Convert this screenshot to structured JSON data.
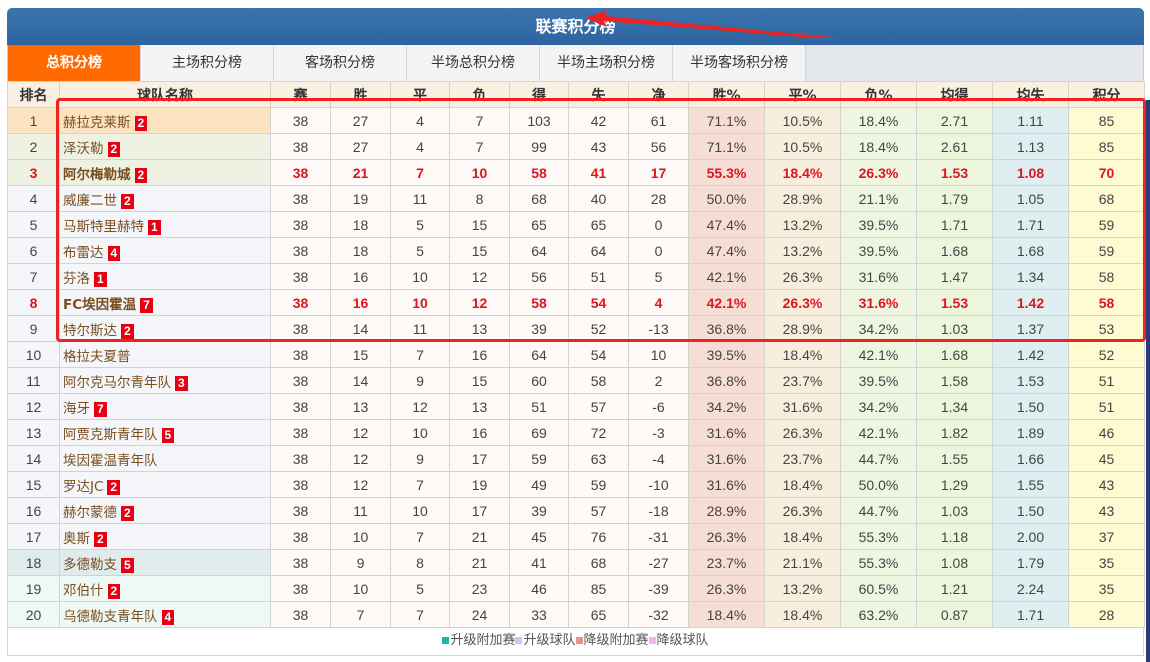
{
  "header": {
    "title": "联赛积分榜"
  },
  "tabs": [
    {
      "label": "总积分榜",
      "active": true
    },
    {
      "label": "主场积分榜",
      "active": false
    },
    {
      "label": "客场积分榜",
      "active": false
    },
    {
      "label": "半场总积分榜",
      "active": false
    },
    {
      "label": "半场主场积分榜",
      "active": false
    },
    {
      "label": "半场客场积分榜",
      "active": false
    }
  ],
  "columns": [
    "排名",
    "球队名称",
    "赛",
    "胜",
    "平",
    "负",
    "得",
    "失",
    "净",
    "胜%",
    "平%",
    "负%",
    "均得",
    "均失",
    "积分"
  ],
  "rows": [
    {
      "rank": "1",
      "team": "赫拉克莱斯",
      "badge": "2",
      "p": "38",
      "w": "27",
      "d": "4",
      "l": "7",
      "gf": "103",
      "ga": "42",
      "gd": "61",
      "wp": "71.1%",
      "dp": "10.5%",
      "lp": "18.4%",
      "avg_gf": "2.71",
      "avg_ga": "1.11",
      "pts": "85",
      "highlight": false
    },
    {
      "rank": "2",
      "team": "泽沃勒",
      "badge": "2",
      "p": "38",
      "w": "27",
      "d": "4",
      "l": "7",
      "gf": "99",
      "ga": "43",
      "gd": "56",
      "wp": "71.1%",
      "dp": "10.5%",
      "lp": "18.4%",
      "avg_gf": "2.61",
      "avg_ga": "1.13",
      "pts": "85",
      "highlight": false
    },
    {
      "rank": "3",
      "team": "阿尔梅勒城",
      "badge": "2",
      "p": "38",
      "w": "21",
      "d": "7",
      "l": "10",
      "gf": "58",
      "ga": "41",
      "gd": "17",
      "wp": "55.3%",
      "dp": "18.4%",
      "lp": "26.3%",
      "avg_gf": "1.53",
      "avg_ga": "1.08",
      "pts": "70",
      "highlight": true
    },
    {
      "rank": "4",
      "team": "威廉二世",
      "badge": "2",
      "p": "38",
      "w": "19",
      "d": "11",
      "l": "8",
      "gf": "68",
      "ga": "40",
      "gd": "28",
      "wp": "50.0%",
      "dp": "28.9%",
      "lp": "21.1%",
      "avg_gf": "1.79",
      "avg_ga": "1.05",
      "pts": "68",
      "highlight": false
    },
    {
      "rank": "5",
      "team": "马斯特里赫特",
      "badge": "1",
      "p": "38",
      "w": "18",
      "d": "5",
      "l": "15",
      "gf": "65",
      "ga": "65",
      "gd": "0",
      "wp": "47.4%",
      "dp": "13.2%",
      "lp": "39.5%",
      "avg_gf": "1.71",
      "avg_ga": "1.71",
      "pts": "59",
      "highlight": false
    },
    {
      "rank": "6",
      "team": "布雷达",
      "badge": "4",
      "p": "38",
      "w": "18",
      "d": "5",
      "l": "15",
      "gf": "64",
      "ga": "64",
      "gd": "0",
      "wp": "47.4%",
      "dp": "13.2%",
      "lp": "39.5%",
      "avg_gf": "1.68",
      "avg_ga": "1.68",
      "pts": "59",
      "highlight": false
    },
    {
      "rank": "7",
      "team": "芬洛",
      "badge": "1",
      "p": "38",
      "w": "16",
      "d": "10",
      "l": "12",
      "gf": "56",
      "ga": "51",
      "gd": "5",
      "wp": "42.1%",
      "dp": "26.3%",
      "lp": "31.6%",
      "avg_gf": "1.47",
      "avg_ga": "1.34",
      "pts": "58",
      "highlight": false
    },
    {
      "rank": "8",
      "team": "FC埃因霍温",
      "badge": "7",
      "p": "38",
      "w": "16",
      "d": "10",
      "l": "12",
      "gf": "58",
      "ga": "54",
      "gd": "4",
      "wp": "42.1%",
      "dp": "26.3%",
      "lp": "31.6%",
      "avg_gf": "1.53",
      "avg_ga": "1.42",
      "pts": "58",
      "highlight": true
    },
    {
      "rank": "9",
      "team": "特尔斯达",
      "badge": "2",
      "p": "38",
      "w": "14",
      "d": "11",
      "l": "13",
      "gf": "39",
      "ga": "52",
      "gd": "-13",
      "wp": "36.8%",
      "dp": "28.9%",
      "lp": "34.2%",
      "avg_gf": "1.03",
      "avg_ga": "1.37",
      "pts": "53",
      "highlight": false
    },
    {
      "rank": "10",
      "team": "格拉夫夏普",
      "badge": "",
      "p": "38",
      "w": "15",
      "d": "7",
      "l": "16",
      "gf": "64",
      "ga": "54",
      "gd": "10",
      "wp": "39.5%",
      "dp": "18.4%",
      "lp": "42.1%",
      "avg_gf": "1.68",
      "avg_ga": "1.42",
      "pts": "52",
      "highlight": false
    },
    {
      "rank": "11",
      "team": "阿尔克马尔青年队",
      "badge": "3",
      "p": "38",
      "w": "14",
      "d": "9",
      "l": "15",
      "gf": "60",
      "ga": "58",
      "gd": "2",
      "wp": "36.8%",
      "dp": "23.7%",
      "lp": "39.5%",
      "avg_gf": "1.58",
      "avg_ga": "1.53",
      "pts": "51",
      "highlight": false
    },
    {
      "rank": "12",
      "team": "海牙",
      "badge": "7",
      "p": "38",
      "w": "13",
      "d": "12",
      "l": "13",
      "gf": "51",
      "ga": "57",
      "gd": "-6",
      "wp": "34.2%",
      "dp": "31.6%",
      "lp": "34.2%",
      "avg_gf": "1.34",
      "avg_ga": "1.50",
      "pts": "51",
      "highlight": false
    },
    {
      "rank": "13",
      "team": "阿贾克斯青年队",
      "badge": "5",
      "p": "38",
      "w": "12",
      "d": "10",
      "l": "16",
      "gf": "69",
      "ga": "72",
      "gd": "-3",
      "wp": "31.6%",
      "dp": "26.3%",
      "lp": "42.1%",
      "avg_gf": "1.82",
      "avg_ga": "1.89",
      "pts": "46",
      "highlight": false
    },
    {
      "rank": "14",
      "team": "埃因霍温青年队",
      "badge": "",
      "p": "38",
      "w": "12",
      "d": "9",
      "l": "17",
      "gf": "59",
      "ga": "63",
      "gd": "-4",
      "wp": "31.6%",
      "dp": "23.7%",
      "lp": "44.7%",
      "avg_gf": "1.55",
      "avg_ga": "1.66",
      "pts": "45",
      "highlight": false
    },
    {
      "rank": "15",
      "team": "罗达JC",
      "badge": "2",
      "p": "38",
      "w": "12",
      "d": "7",
      "l": "19",
      "gf": "49",
      "ga": "59",
      "gd": "-10",
      "wp": "31.6%",
      "dp": "18.4%",
      "lp": "50.0%",
      "avg_gf": "1.29",
      "avg_ga": "1.55",
      "pts": "43",
      "highlight": false
    },
    {
      "rank": "16",
      "team": "赫尔蒙德",
      "badge": "2",
      "p": "38",
      "w": "11",
      "d": "10",
      "l": "17",
      "gf": "39",
      "ga": "57",
      "gd": "-18",
      "wp": "28.9%",
      "dp": "26.3%",
      "lp": "44.7%",
      "avg_gf": "1.03",
      "avg_ga": "1.50",
      "pts": "43",
      "highlight": false
    },
    {
      "rank": "17",
      "team": "奥斯",
      "badge": "2",
      "p": "38",
      "w": "10",
      "d": "7",
      "l": "21",
      "gf": "45",
      "ga": "76",
      "gd": "-31",
      "wp": "26.3%",
      "dp": "18.4%",
      "lp": "55.3%",
      "avg_gf": "1.18",
      "avg_ga": "2.00",
      "pts": "37",
      "highlight": false
    },
    {
      "rank": "18",
      "team": "多德勒支",
      "badge": "5",
      "p": "38",
      "w": "9",
      "d": "8",
      "l": "21",
      "gf": "41",
      "ga": "68",
      "gd": "-27",
      "wp": "23.7%",
      "dp": "21.1%",
      "lp": "55.3%",
      "avg_gf": "1.08",
      "avg_ga": "1.79",
      "pts": "35",
      "highlight": false
    },
    {
      "rank": "19",
      "team": "邓伯什",
      "badge": "2",
      "p": "38",
      "w": "10",
      "d": "5",
      "l": "23",
      "gf": "46",
      "ga": "85",
      "gd": "-39",
      "wp": "26.3%",
      "dp": "13.2%",
      "lp": "60.5%",
      "avg_gf": "1.21",
      "avg_ga": "2.24",
      "pts": "35",
      "highlight": false
    },
    {
      "rank": "20",
      "team": "乌德勒支青年队",
      "badge": "4",
      "p": "38",
      "w": "7",
      "d": "7",
      "l": "24",
      "gf": "33",
      "ga": "65",
      "gd": "-32",
      "wp": "18.4%",
      "dp": "18.4%",
      "lp": "63.2%",
      "avg_gf": "0.87",
      "avg_ga": "1.71",
      "pts": "28",
      "highlight": false
    }
  ],
  "legend": [
    {
      "label": "升级附加赛",
      "color": "#1fb5ad"
    },
    {
      "label": "升级球队",
      "color": "#c7cdf0"
    },
    {
      "label": "降级附加赛",
      "color": "#f0908a"
    },
    {
      "label": "降级球队",
      "color": "#f4b4ec"
    }
  ],
  "colors": {
    "title_bar": "#3a75b0",
    "active_tab": "#ff6a00",
    "highlight_text": "#e0141e",
    "badge": "#e60012",
    "annotation": "#ee2222"
  }
}
